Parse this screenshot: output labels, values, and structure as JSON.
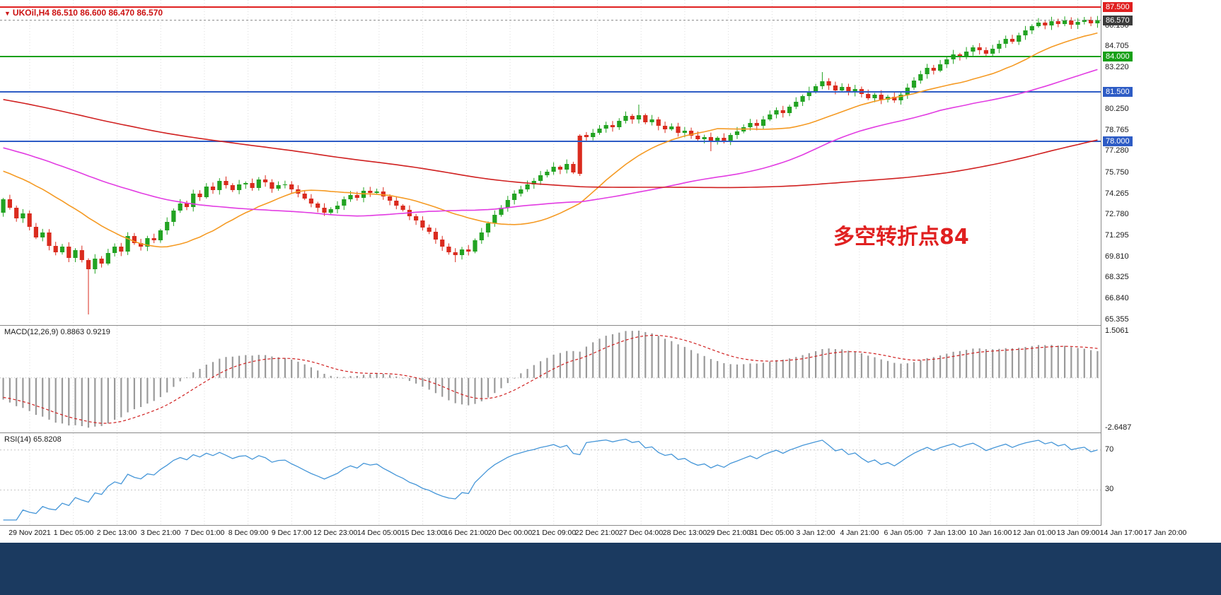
{
  "window": {
    "title": "UKOil,H4  86.510 86.600 86.470 86.570"
  },
  "colors": {
    "up": "#22a322",
    "down": "#da2b1e",
    "ma_fast": "#f59a23",
    "ma_mid": "#e23ce2",
    "ma_slow": "#d02020",
    "macd_hist": "#9a9a9a",
    "macd_signal": "#d02020",
    "rsi": "#4596d8",
    "grid": "#dcdcdc",
    "title": "#cc1111",
    "annotation": "#e02020",
    "taskbar": "#1b3a60",
    "current_badge": "#3c3c3c"
  },
  "chart_data": {
    "type": "candlestick+indicators",
    "symbol": "UKOil",
    "timeframe": "H4",
    "ohlc_display": [
      "86.510",
      "86.600",
      "86.470",
      "86.570"
    ],
    "price_panel": {
      "ylim": [
        65.0,
        88.0
      ],
      "scale_ticks": [
        "86.150",
        "84.705",
        "83.220",
        "80.250",
        "78.765",
        "77.280",
        "75.750",
        "74.265",
        "72.780",
        "71.295",
        "69.810",
        "68.325",
        "66.840",
        "65.355"
      ],
      "hlines": [
        {
          "value": 87.5,
          "label": "87.500",
          "color": "#e02020"
        },
        {
          "value": 84.0,
          "label": "84.000",
          "color": "#18a018"
        },
        {
          "value": 81.5,
          "label": "81.500",
          "color": "#2e5cc5"
        },
        {
          "value": 78.0,
          "label": "78.000",
          "color": "#2e5cc5"
        }
      ],
      "current_price": {
        "value": 86.57,
        "label": "86.570"
      },
      "first_open": 72.95,
      "closes": [
        73.9,
        73.3,
        72.55,
        72.9,
        71.95,
        71.2,
        71.55,
        70.6,
        70.15,
        70.55,
        69.75,
        70.3,
        69.6,
        68.95,
        69.7,
        69.35,
        70.1,
        70.55,
        70.2,
        71.3,
        70.8,
        70.55,
        71.15,
        71.0,
        71.7,
        72.3,
        73.1,
        73.6,
        73.35,
        74.3,
        74.05,
        74.8,
        74.55,
        75.2,
        74.9,
        74.55,
        74.95,
        75.05,
        74.7,
        75.3,
        75.1,
        74.65,
        74.9,
        74.95,
        74.6,
        74.3,
        73.95,
        73.6,
        73.3,
        72.95,
        73.2,
        73.45,
        73.9,
        74.2,
        74.0,
        74.5,
        74.35,
        74.45,
        74.1,
        73.8,
        73.45,
        73.15,
        72.7,
        72.4,
        71.9,
        71.6,
        71.05,
        70.55,
        70.15,
        69.95,
        70.35,
        70.2,
        71.0,
        71.55,
        72.2,
        72.8,
        73.3,
        73.85,
        74.3,
        74.6,
        74.95,
        75.2,
        75.6,
        75.85,
        76.2,
        76.0,
        76.4,
        75.8,
        75.7,
        78.3,
        78.6,
        78.9,
        79.15,
        79.0,
        79.45,
        79.8,
        79.55,
        79.85,
        79.35,
        79.55,
        79.1,
        78.85,
        79.05,
        78.6,
        78.75,
        78.4,
        78.15,
        78.3,
        77.95,
        78.25,
        78.05,
        78.45,
        78.7,
        79.0,
        79.3,
        79.1,
        79.55,
        79.9,
        80.2,
        80.0,
        80.45,
        80.8,
        81.2,
        81.55,
        81.9,
        82.25,
        81.95,
        81.6,
        81.85,
        81.5,
        81.7,
        81.35,
        81.05,
        81.3,
        80.95,
        81.15,
        80.9,
        81.3,
        81.8,
        82.3,
        82.75,
        83.2,
        83.0,
        83.45,
        83.8,
        84.15,
        83.95,
        84.35,
        84.65,
        84.45,
        84.2,
        84.55,
        84.9,
        85.25,
        85.05,
        85.5,
        85.85,
        86.15,
        86.4,
        86.2,
        86.5,
        86.3,
        86.55,
        86.25,
        86.45,
        86.6,
        86.35,
        86.57
      ],
      "overrides": {
        "13": {
          "low": 65.75
        },
        "69": {
          "low": 69.45
        },
        "88": {
          "open": 78.4,
          "high": 78.5,
          "low": 75.55
        },
        "89": {
          "open": 78.45
        },
        "97": {
          "high": 80.6
        },
        "108": {
          "low": 77.3
        },
        "125": {
          "high": 82.9
        },
        "165": {
          "high": 86.8
        }
      },
      "annotation": {
        "text": "多空转折点84"
      }
    },
    "macd_panel": {
      "label": "MACD(12,26,9) 0.8863 0.9219",
      "params": [
        12,
        26,
        9
      ],
      "value_main": "0.8863",
      "value_signal": "0.9219",
      "max_label": "1.5061",
      "min_label": "-2.6487"
    },
    "rsi_panel": {
      "label": "RSI(14) 65.8208",
      "period": 14,
      "value": "65.8208",
      "levels": [
        "70",
        "30"
      ]
    },
    "time_labels": [
      "29 Nov 2021",
      "1 Dec 05:00",
      "2 Dec 13:00",
      "3 Dec 21:00",
      "7 Dec 01:00",
      "8 Dec 09:00",
      "9 Dec 17:00",
      "12 Dec 23:00",
      "14 Dec 05:00",
      "15 Dec 13:00",
      "16 Dec 21:00",
      "20 Dec 00:00",
      "21 Dec 09:00",
      "22 Dec 21:00",
      "27 Dec 04:00",
      "28 Dec 13:00",
      "29 Dec 21:00",
      "31 Dec 05:00",
      "3 Jan 12:00",
      "4 Jan 21:00",
      "6 Jan 05:00",
      "7 Jan 13:00",
      "10 Jan 16:00",
      "12 Jan 01:00",
      "13 Jan 09:00",
      "14 Jan 17:00",
      "17 Jan 20:00"
    ]
  }
}
